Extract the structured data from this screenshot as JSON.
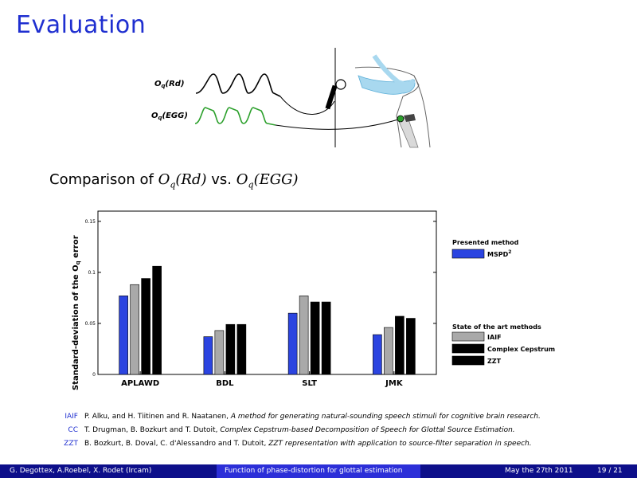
{
  "header": {
    "title": "Evaluation"
  },
  "illustration": {
    "label_rd_prefix": "O",
    "label_rd_sub": "q",
    "label_rd_suffix": "(Rd)",
    "label_egg_prefix": "O",
    "label_egg_sub": "q",
    "label_egg_suffix": "(EGG)"
  },
  "subtitle": {
    "text": "Comparison of",
    "expr1": "O",
    "expr1_sub": "q",
    "expr1_arg": "(Rd)",
    "mid": "vs.",
    "expr2": "O",
    "expr2_sub": "q",
    "expr2_arg": "(EGG)"
  },
  "chart_data": {
    "type": "bar",
    "ylabel_prefix": "Standard-deviation of the O",
    "ylabel_sub": "q",
    "ylabel_suffix": " error",
    "ylim": [
      0,
      0.16
    ],
    "yticks": [
      0,
      0.05,
      0.1,
      0.15
    ],
    "ytick_labels": [
      "0",
      "0.05",
      "0.1",
      "0.15"
    ],
    "categories": [
      "APLAWD",
      "BDL",
      "SLT",
      "JMK"
    ],
    "series": [
      {
        "name": "MSPD",
        "values": [
          0.077,
          0.037,
          0.06,
          0.039
        ],
        "color": "#2b44e0"
      },
      {
        "name": "IAIF",
        "values": [
          0.088,
          0.043,
          0.077,
          0.046
        ],
        "color": "#a9a9a9"
      },
      {
        "name": "Complex Cepstrum",
        "values": [
          0.094,
          0.049,
          0.071,
          0.057
        ],
        "color": "#000000"
      },
      {
        "name": "ZZT",
        "values": [
          0.106,
          0.049,
          0.071,
          0.055
        ],
        "color": "#000000"
      }
    ],
    "legend": {
      "group1_title": "Presented method",
      "group1_items": [
        {
          "label": "MSPD",
          "sup": "2",
          "color": "#2b44e0"
        }
      ],
      "group2_title": "State of the art methods",
      "group2_items": [
        {
          "label": "IAIF",
          "color": "#a9a9a9"
        },
        {
          "label": "Complex Cepstrum",
          "color": "#000000"
        },
        {
          "label": "ZZT",
          "color": "#000000"
        }
      ],
      "placement": "right"
    },
    "grid": false
  },
  "references": [
    {
      "key": "IAIF",
      "authors": "P. Alku, and H. Tiitinen and R. Naatanen,",
      "title": "A method for generating natural-sounding speech stimuli for cognitive brain research."
    },
    {
      "key": "CC",
      "authors": "T. Drugman, B. Bozkurt and T. Dutoit,",
      "title": "Complex Cepstrum-based Decomposition of Speech for Glottal Source Estimation."
    },
    {
      "key": "ZZT",
      "authors": "B. Bozkurt, B. Doval, C. d'Alessandro and T. Dutoit,",
      "title": "ZZT representation with application to source-filter separation in speech."
    }
  ],
  "footer": {
    "authors": "G. Degottex, A.Roebel, X. Rodet (Ircam)",
    "talk": "Function of phase-distortion for glottal estimation",
    "date": "May the 27th 2011",
    "page": "19 / 21"
  }
}
